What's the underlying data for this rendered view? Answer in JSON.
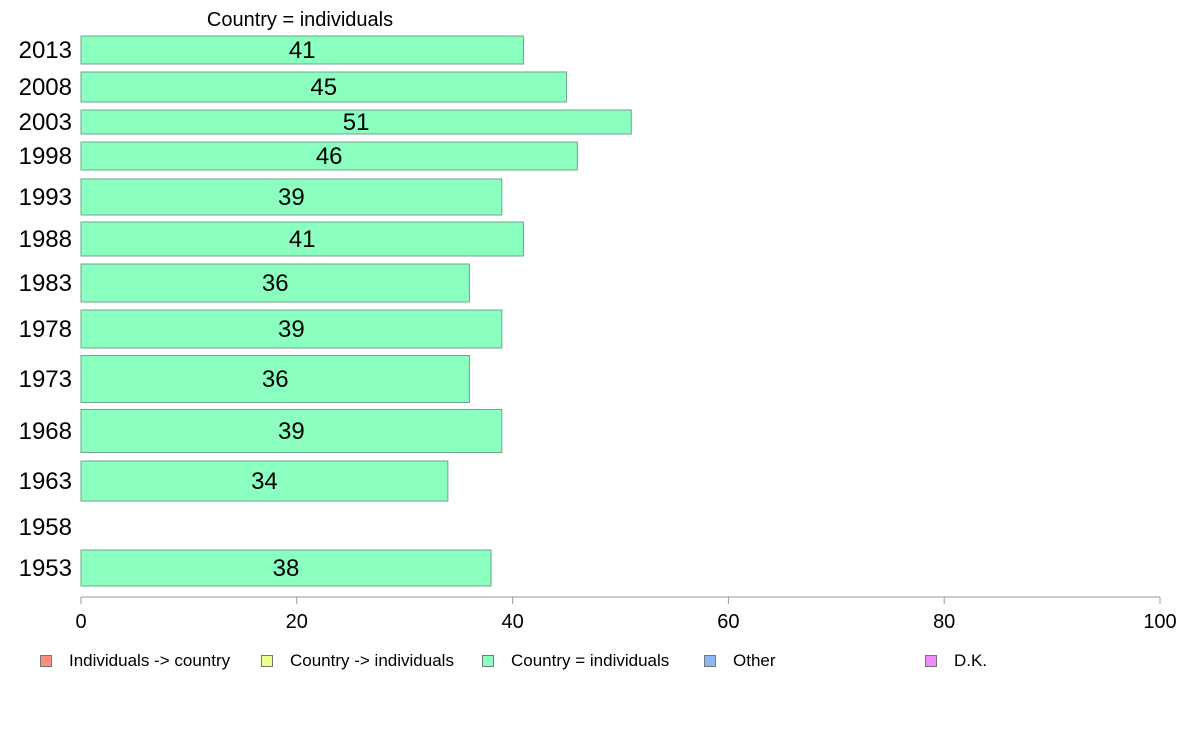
{
  "chart_data": {
    "type": "bar",
    "orientation": "horizontal",
    "title": "Country = individuals",
    "categories": [
      "2013",
      "2008",
      "2003",
      "1998",
      "1993",
      "1988",
      "1983",
      "1978",
      "1973",
      "1968",
      "1963",
      "1958",
      "1953"
    ],
    "series": [
      {
        "name": "Country = individuals",
        "values": [
          41,
          45,
          51,
          46,
          39,
          41,
          36,
          39,
          36,
          39,
          34,
          null,
          38
        ],
        "labels": [
          "41",
          "45",
          "51",
          "46",
          "39",
          "41",
          "36",
          "39",
          "36",
          "39",
          "34",
          "",
          "38"
        ]
      }
    ],
    "xlim": [
      0,
      100
    ],
    "x_ticks": [
      "0",
      "20",
      "40",
      "60",
      "80",
      "100"
    ],
    "grid": false,
    "legend_position": "bottom",
    "legend": [
      {
        "label": "Individuals -> country",
        "color": "#fb8e80"
      },
      {
        "label": "Country -> individuals",
        "color": "#e9ff8a"
      },
      {
        "label": "Country = individuals",
        "color": "#8affbf"
      },
      {
        "label": "Other",
        "color": "#8ab8f9"
      },
      {
        "label": "D.K.",
        "color": "#f28af9"
      }
    ],
    "bar_color": "#8affbf"
  }
}
